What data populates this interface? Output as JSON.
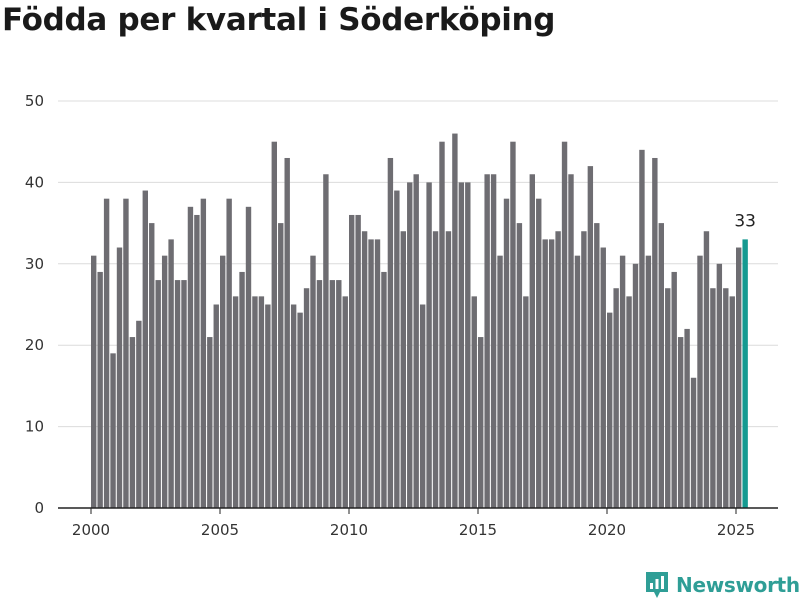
{
  "title": "Födda per kvartal i Söderköping",
  "brand": {
    "name": "Newsworthy",
    "icon": "newsworthy-logo-icon",
    "color": "#2f9e96"
  },
  "chart_data": {
    "type": "bar",
    "title": "Födda per kvartal i Söderköping",
    "xlabel": "",
    "ylabel": "",
    "ylim": [
      0,
      50
    ],
    "yticks": [
      0,
      10,
      20,
      30,
      40,
      50
    ],
    "xticks": [
      "2000",
      "2005",
      "2010",
      "2015",
      "2020",
      "2025"
    ],
    "grid": true,
    "bar_color": "#6e6d72",
    "highlight_color": "#159a91",
    "highlight_label": "33",
    "categories": [
      "2000 Q1",
      "2000 Q2",
      "2000 Q3",
      "2000 Q4",
      "2001 Q1",
      "2001 Q2",
      "2001 Q3",
      "2001 Q4",
      "2002 Q1",
      "2002 Q2",
      "2002 Q3",
      "2002 Q4",
      "2003 Q1",
      "2003 Q2",
      "2003 Q3",
      "2003 Q4",
      "2004 Q1",
      "2004 Q2",
      "2004 Q3",
      "2004 Q4",
      "2005 Q1",
      "2005 Q2",
      "2005 Q3",
      "2005 Q4",
      "2006 Q1",
      "2006 Q2",
      "2006 Q3",
      "2006 Q4",
      "2007 Q1",
      "2007 Q2",
      "2007 Q3",
      "2007 Q4",
      "2008 Q1",
      "2008 Q2",
      "2008 Q3",
      "2008 Q4",
      "2009 Q1",
      "2009 Q2",
      "2009 Q3",
      "2009 Q4",
      "2010 Q1",
      "2010 Q2",
      "2010 Q3",
      "2010 Q4",
      "2011 Q1",
      "2011 Q2",
      "2011 Q3",
      "2011 Q4",
      "2012 Q1",
      "2012 Q2",
      "2012 Q3",
      "2012 Q4",
      "2013 Q1",
      "2013 Q2",
      "2013 Q3",
      "2013 Q4",
      "2014 Q1",
      "2014 Q2",
      "2014 Q3",
      "2014 Q4",
      "2015 Q1",
      "2015 Q2",
      "2015 Q3",
      "2015 Q4",
      "2016 Q1",
      "2016 Q2",
      "2016 Q3",
      "2016 Q4",
      "2017 Q1",
      "2017 Q2",
      "2017 Q3",
      "2017 Q4",
      "2018 Q1",
      "2018 Q2",
      "2018 Q3",
      "2018 Q4",
      "2019 Q1",
      "2019 Q2",
      "2019 Q3",
      "2019 Q4",
      "2020 Q1",
      "2020 Q2",
      "2020 Q3",
      "2020 Q4",
      "2021 Q1",
      "2021 Q2",
      "2021 Q3",
      "2021 Q4",
      "2022 Q1",
      "2022 Q2",
      "2022 Q3",
      "2022 Q4",
      "2023 Q1",
      "2023 Q2",
      "2023 Q3",
      "2023 Q4",
      "2024 Q1",
      "2024 Q2",
      "2024 Q3",
      "2024 Q4",
      "2025 Q1",
      "2025 Q2"
    ],
    "values": [
      31,
      29,
      38,
      19,
      32,
      38,
      21,
      23,
      39,
      35,
      28,
      31,
      33,
      28,
      28,
      37,
      36,
      38,
      21,
      25,
      31,
      38,
      26,
      29,
      37,
      26,
      26,
      25,
      45,
      35,
      43,
      25,
      24,
      27,
      31,
      28,
      41,
      28,
      28,
      26,
      36,
      36,
      34,
      33,
      33,
      29,
      43,
      39,
      34,
      40,
      41,
      25,
      40,
      34,
      45,
      34,
      46,
      40,
      40,
      26,
      21,
      41,
      41,
      31,
      38,
      45,
      35,
      26,
      41,
      38,
      33,
      33,
      34,
      45,
      41,
      31,
      34,
      42,
      35,
      32,
      24,
      27,
      31,
      26,
      30,
      44,
      31,
      43,
      35,
      27,
      29,
      21,
      22,
      16,
      31,
      34,
      27,
      30,
      27,
      26,
      32,
      33
    ]
  }
}
